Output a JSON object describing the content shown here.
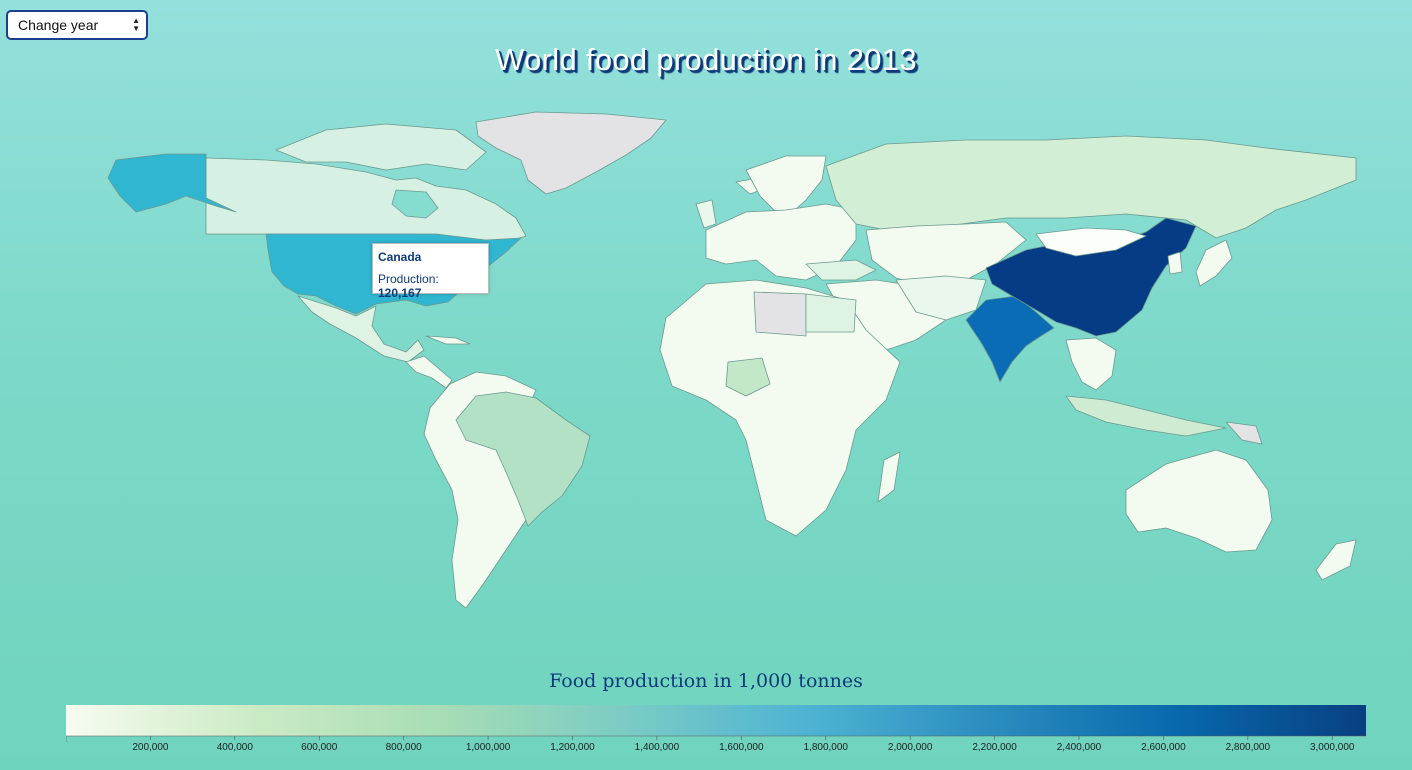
{
  "controls": {
    "year_select_label": "Change year"
  },
  "title": "World food production in 2013",
  "tooltip": {
    "country": "Canada",
    "label": "Production:",
    "value": "120,167"
  },
  "legend": {
    "title": "Food production in 1,000 tonnes",
    "min": 0,
    "max": 3080000,
    "ticks": [
      "200,000",
      "400,000",
      "600,000",
      "800,000",
      "1,000,000",
      "1,200,000",
      "1,400,000",
      "1,600,000",
      "1,800,000",
      "2,000,000",
      "2,200,000",
      "2,400,000",
      "2,600,000",
      "2,800,000",
      "3,000,000"
    ],
    "tick_values": [
      200000,
      400000,
      600000,
      800000,
      1000000,
      1200000,
      1400000,
      1600000,
      1800000,
      2000000,
      2200000,
      2400000,
      2600000,
      2800000,
      3000000
    ],
    "color_stops": [
      "#f7fcf0",
      "#ccebc5",
      "#a8ddb5",
      "#7bccc4",
      "#4eb3d3",
      "#2b8cbe",
      "#0868ac",
      "#084081"
    ],
    "no_data_color": "#e3e3e6"
  }
}
